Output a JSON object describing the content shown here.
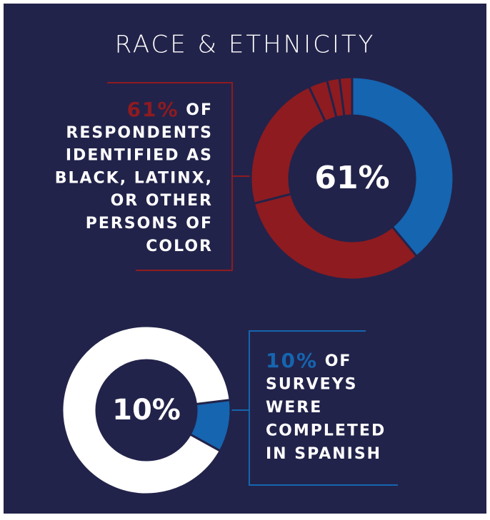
{
  "title": "RACE & ETHNICITY",
  "chart_data": [
    {
      "type": "donut",
      "center_label": "61%",
      "text_lines": [
        "OF",
        "RESPONDENTS",
        "IDENTIFIED AS",
        "BLACK, LATINX,",
        "OR OTHER",
        "PERSONS OF",
        "COLOR"
      ],
      "values": [
        39,
        32,
        22,
        3,
        2,
        2
      ],
      "colors": [
        "#1565b0",
        "#8e1b20",
        "#8e1b20",
        "#8e1b20",
        "#8e1b20",
        "#8e1b20"
      ]
    },
    {
      "type": "donut",
      "center_label": "10%",
      "text_lines": [
        "OF",
        "SURVEYS",
        "WERE",
        "COMPLETED",
        "IN SPANISH"
      ],
      "values": [
        10,
        90
      ],
      "colors": [
        "#1565b0",
        "#ffffff"
      ]
    }
  ]
}
